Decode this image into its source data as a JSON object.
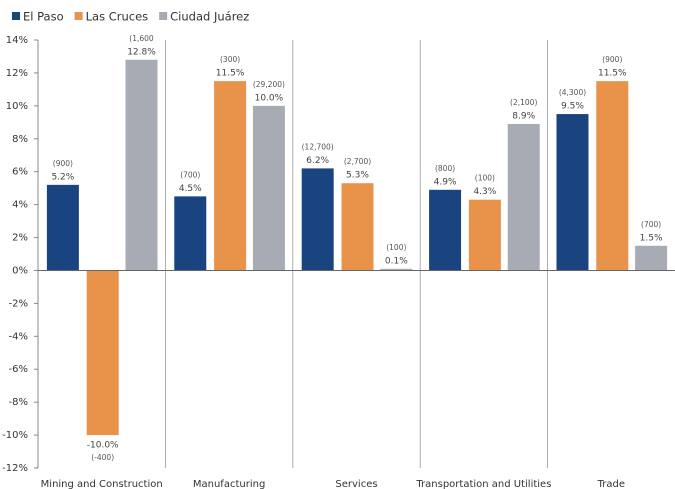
{
  "chart_data": {
    "type": "bar",
    "categories": [
      "Mining and Construction",
      "Manufacturing",
      "Services",
      "Transportation and Utilities",
      "Trade"
    ],
    "series": [
      {
        "name": "El Paso",
        "color": "#1a4480",
        "values": [
          5.2,
          4.5,
          6.2,
          4.9,
          9.5
        ],
        "value_labels": [
          "5.2%",
          "4.5%",
          "6.2%",
          "4.9%",
          "9.5%"
        ],
        "count_labels": [
          "(900)",
          "(700)",
          "(12,700)",
          "(800)",
          "(4,300)"
        ]
      },
      {
        "name": "Las Cruces",
        "color": "#e8924a",
        "values": [
          -10.0,
          11.5,
          5.3,
          4.3,
          11.5
        ],
        "value_labels": [
          "-10.0%",
          "11.5%",
          "5.3%",
          "4.3%",
          "11.5%"
        ],
        "count_labels": [
          "(-400)",
          "(300)",
          "(2,700)",
          "(100)",
          "(900)"
        ]
      },
      {
        "name": "Ciudad Juárez",
        "color": "#a7abb3",
        "values": [
          12.8,
          10.0,
          0.1,
          8.9,
          1.5
        ],
        "value_labels": [
          "12.8%",
          "10.0%",
          "0.1%",
          "8.9%",
          "1.5%"
        ],
        "count_labels": [
          "(1,600",
          "(29,200)",
          "(100)",
          "(2,100)",
          "(700)"
        ]
      }
    ],
    "ylim": [
      -12,
      14
    ],
    "yticks": [
      {
        "value": -12,
        "label": "-12%"
      },
      {
        "value": -10,
        "label": "-10%"
      },
      {
        "value": -8,
        "label": "-8%"
      },
      {
        "value": -6,
        "label": "-6%"
      },
      {
        "value": -4,
        "label": "-4%"
      },
      {
        "value": -2,
        "label": "-2%"
      },
      {
        "value": 0,
        "label": "0%"
      },
      {
        "value": 2,
        "label": "2%"
      },
      {
        "value": 4,
        "label": "4%"
      },
      {
        "value": 6,
        "label": "6%"
      },
      {
        "value": 8,
        "label": "8%"
      },
      {
        "value": 10,
        "label": "10%"
      },
      {
        "value": 12,
        "label": "12%"
      },
      {
        "value": 14,
        "label": "14%"
      }
    ],
    "legend": "top-left"
  }
}
